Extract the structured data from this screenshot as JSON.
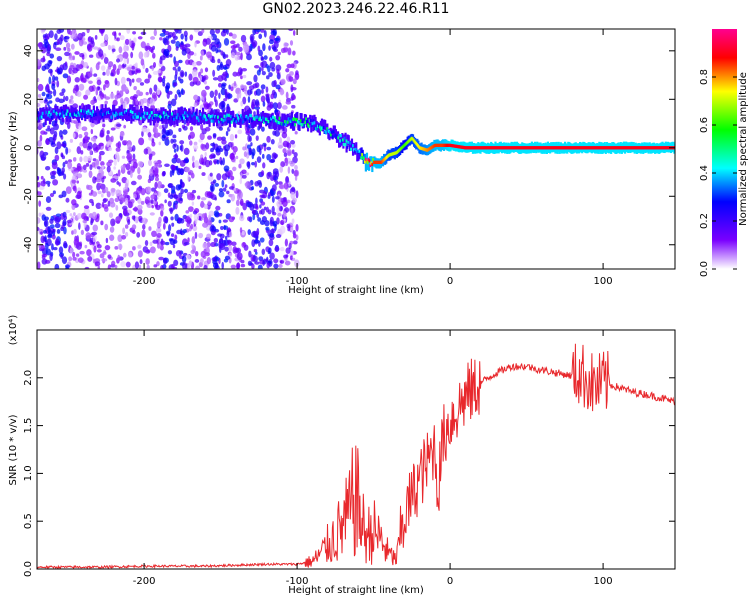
{
  "title": "GN02.2023.246.22.46.R11",
  "chart_data": [
    {
      "type": "heatmap",
      "xlabel": "Height of straight line (km)",
      "ylabel": "Frequency (Hz)",
      "xlim": [
        -270,
        147
      ],
      "ylim": [
        -50,
        49
      ],
      "xticks": [
        -200,
        -100,
        0,
        100
      ],
      "yticks": [
        -40,
        -20,
        0,
        20,
        40
      ],
      "colorbar": {
        "label": "Normalized spectral amplitude",
        "range": [
          0.0,
          1.0
        ],
        "ticks": [
          0.0,
          0.2,
          0.4,
          0.6,
          0.8
        ],
        "tick_labels": [
          "0.0",
          "0.2",
          "0.4",
          "0.6",
          "0.8"
        ],
        "colormap": [
          "#ffffff",
          "#7a00ff",
          "#0000ff",
          "#00ffff",
          "#00ff00",
          "#ffff00",
          "#ff0000",
          "#ff00a0"
        ]
      },
      "ridge": {
        "x": [
          -270,
          -250,
          -230,
          -210,
          -190,
          -170,
          -150,
          -130,
          -110,
          -100,
          -90,
          -80,
          -70,
          -60,
          -55,
          -50,
          -45,
          -40,
          -35,
          -30,
          -25,
          -20,
          -15,
          -10,
          -5,
          0,
          10,
          30,
          60,
          90,
          100,
          120,
          147
        ],
        "freq": [
          13,
          14,
          14,
          14,
          13,
          13,
          12,
          12,
          11,
          11,
          10,
          7,
          3,
          -2,
          -6,
          -6,
          -6,
          -3,
          -2,
          1,
          4,
          0,
          -1,
          1,
          1,
          1,
          0,
          0,
          0,
          0,
          0,
          0,
          0
        ],
        "amplitude": [
          0.3,
          0.35,
          0.3,
          0.3,
          0.35,
          0.3,
          0.35,
          0.35,
          0.4,
          0.45,
          0.4,
          0.4,
          0.35,
          0.3,
          0.85,
          0.85,
          0.85,
          0.7,
          0.7,
          0.6,
          0.7,
          0.75,
          0.8,
          0.85,
          0.85,
          0.9,
          0.9,
          0.9,
          0.9,
          0.9,
          0.9,
          0.9,
          0.9
        ]
      }
    },
    {
      "type": "line",
      "xlabel": "Height of straight line (km)",
      "ylabel": "SNR (10 * v/v)",
      "y_multiplier": "(x10⁴)",
      "xlim": [
        -270,
        147
      ],
      "ylim": [
        0,
        2.5
      ],
      "xticks": [
        -200,
        -100,
        0,
        100
      ],
      "yticks": [
        0.0,
        0.5,
        1.0,
        1.5,
        2.0
      ],
      "ytick_labels": [
        "0.0",
        "0.5",
        "1.0",
        "1.5",
        "2.0"
      ],
      "color": "#e8282c",
      "series": [
        {
          "x": [
            -270,
            -250,
            -230,
            -200,
            -180,
            -160,
            -140,
            -120,
            -100,
            -90,
            -85,
            -80,
            -75,
            -70,
            -65,
            -62,
            -58,
            -55,
            -50,
            -45,
            -40,
            -35,
            -33,
            -30,
            -25,
            -20,
            -15,
            -10,
            -8,
            -5,
            0,
            10,
            20,
            30,
            40,
            50,
            60,
            70,
            80,
            85,
            90,
            95,
            100,
            110,
            120,
            130,
            147
          ],
          "y": [
            0.02,
            0.02,
            0.02,
            0.03,
            0.03,
            0.03,
            0.04,
            0.05,
            0.05,
            0.08,
            0.15,
            0.25,
            0.35,
            0.45,
            0.6,
            0.8,
            0.5,
            0.35,
            0.4,
            0.3,
            0.15,
            0.1,
            0.3,
            0.55,
            0.75,
            0.95,
            1.1,
            1.3,
            0.8,
            1.35,
            1.55,
            1.8,
            1.95,
            2.05,
            2.12,
            2.12,
            2.08,
            2.05,
            2.02,
            2.05,
            1.98,
            1.9,
            1.95,
            1.9,
            1.85,
            1.82,
            1.75
          ]
        }
      ]
    }
  ]
}
